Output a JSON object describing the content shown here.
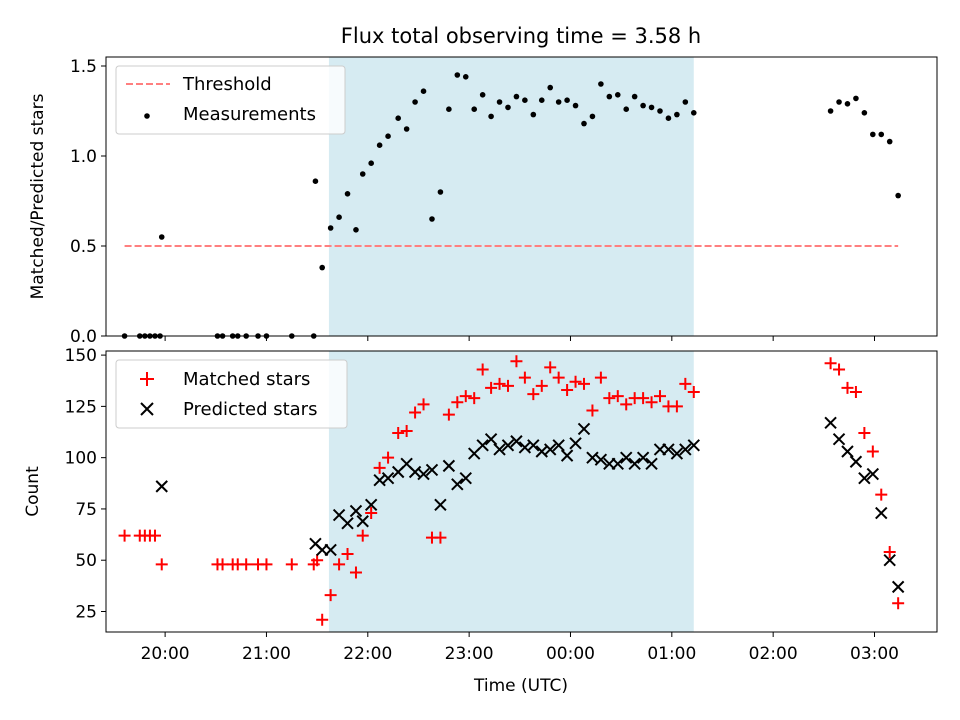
{
  "figure": {
    "title": "Flux total observing time = 3.58 h",
    "xlabel": "Time (UTC)"
  },
  "chart_data": [
    {
      "type": "scatter",
      "panel": "top",
      "ylabel": "Matched/Predicted stars",
      "xlim": [
        "19:25",
        "03:37"
      ],
      "ylim": [
        0,
        1.55
      ],
      "yticks": [
        0.0,
        0.5,
        1.0,
        1.5
      ],
      "ytick_labels": [
        "0.0",
        "0.5",
        "1.0",
        "1.5"
      ],
      "shaded_span": [
        "21:37",
        "01:13"
      ],
      "shaded_color": "#add8e6",
      "legend_position": "upper-left",
      "threshold": {
        "name": "Threshold",
        "value": 0.5,
        "x_range": [
          "19:36",
          "03:14"
        ],
        "color": "#ff7f7f",
        "style": "dashed"
      },
      "series": [
        {
          "name": "Measurements",
          "marker": "dot",
          "color": "#000000",
          "points": [
            [
              "19:36",
              0
            ],
            [
              "19:45",
              0
            ],
            [
              "19:48",
              0
            ],
            [
              "19:51",
              0
            ],
            [
              "19:54",
              0
            ],
            [
              "19:57",
              0
            ],
            [
              "19:58",
              0.55
            ],
            [
              "20:31",
              0
            ],
            [
              "20:34",
              0
            ],
            [
              "20:40",
              0
            ],
            [
              "20:43",
              0
            ],
            [
              "20:48",
              0
            ],
            [
              "20:55",
              0
            ],
            [
              "21:00",
              0
            ],
            [
              "21:15",
              0
            ],
            [
              "21:28",
              0
            ],
            [
              "21:29",
              0.86
            ],
            [
              "21:33",
              0.38
            ],
            [
              "21:38",
              0.6
            ],
            [
              "21:43",
              0.66
            ],
            [
              "21:48",
              0.79
            ],
            [
              "21:53",
              0.59
            ],
            [
              "21:57",
              0.9
            ],
            [
              "22:02",
              0.96
            ],
            [
              "22:07",
              1.06
            ],
            [
              "22:12",
              1.11
            ],
            [
              "22:18",
              1.21
            ],
            [
              "22:23",
              1.15
            ],
            [
              "22:28",
              1.3
            ],
            [
              "22:33",
              1.36
            ],
            [
              "22:38",
              0.65
            ],
            [
              "22:43",
              0.8
            ],
            [
              "22:48",
              1.26
            ],
            [
              "22:53",
              1.45
            ],
            [
              "22:58",
              1.44
            ],
            [
              "23:03",
              1.26
            ],
            [
              "23:08",
              1.34
            ],
            [
              "23:13",
              1.22
            ],
            [
              "23:18",
              1.3
            ],
            [
              "23:23",
              1.27
            ],
            [
              "23:28",
              1.33
            ],
            [
              "23:33",
              1.31
            ],
            [
              "23:38",
              1.23
            ],
            [
              "23:43",
              1.31
            ],
            [
              "23:48",
              1.38
            ],
            [
              "23:53",
              1.3
            ],
            [
              "23:58",
              1.31
            ],
            [
              "00:03",
              1.28
            ],
            [
              "00:08",
              1.18
            ],
            [
              "00:13",
              1.22
            ],
            [
              "00:18",
              1.4
            ],
            [
              "00:23",
              1.33
            ],
            [
              "00:28",
              1.34
            ],
            [
              "00:33",
              1.26
            ],
            [
              "00:38",
              1.33
            ],
            [
              "00:43",
              1.28
            ],
            [
              "00:48",
              1.27
            ],
            [
              "00:53",
              1.25
            ],
            [
              "00:58",
              1.21
            ],
            [
              "01:03",
              1.23
            ],
            [
              "01:08",
              1.3
            ],
            [
              "01:13",
              1.24
            ],
            [
              "02:34",
              1.25
            ],
            [
              "02:39",
              1.3
            ],
            [
              "02:44",
              1.29
            ],
            [
              "02:49",
              1.32
            ],
            [
              "02:54",
              1.24
            ],
            [
              "02:59",
              1.12
            ],
            [
              "03:04",
              1.12
            ],
            [
              "03:09",
              1.08
            ],
            [
              "03:14",
              0.78
            ]
          ]
        }
      ]
    },
    {
      "type": "scatter",
      "panel": "bottom",
      "xlabel": "Time (UTC)",
      "ylabel": "Count",
      "xlim": [
        "19:25",
        "03:37"
      ],
      "ylim": [
        15,
        152
      ],
      "yticks": [
        25,
        50,
        75,
        100,
        125,
        150
      ],
      "ytick_labels": [
        "25",
        "50",
        "75",
        "100",
        "125",
        "150"
      ],
      "xticks": [
        "20:00",
        "21:00",
        "22:00",
        "23:00",
        "00:00",
        "01:00",
        "02:00",
        "03:00"
      ],
      "shaded_span": [
        "21:37",
        "01:13"
      ],
      "shaded_color": "#add8e6",
      "legend_position": "upper-left",
      "series": [
        {
          "name": "Matched stars",
          "marker": "plus",
          "color": "#ff0000",
          "points": [
            [
              "19:36",
              62
            ],
            [
              "19:45",
              62
            ],
            [
              "19:48",
              62
            ],
            [
              "19:51",
              62
            ],
            [
              "19:54",
              62
            ],
            [
              "19:58",
              48
            ],
            [
              "20:31",
              48
            ],
            [
              "20:34",
              48
            ],
            [
              "20:40",
              48
            ],
            [
              "20:43",
              48
            ],
            [
              "20:48",
              48
            ],
            [
              "20:55",
              48
            ],
            [
              "21:00",
              48
            ],
            [
              "21:15",
              48
            ],
            [
              "21:28",
              48
            ],
            [
              "21:30",
              50
            ],
            [
              "21:33",
              21
            ],
            [
              "21:38",
              33
            ],
            [
              "21:43",
              48
            ],
            [
              "21:48",
              53
            ],
            [
              "21:53",
              44
            ],
            [
              "21:57",
              62
            ],
            [
              "22:02",
              73
            ],
            [
              "22:07",
              95
            ],
            [
              "22:12",
              100
            ],
            [
              "22:18",
              112
            ],
            [
              "22:23",
              113
            ],
            [
              "22:28",
              122
            ],
            [
              "22:33",
              126
            ],
            [
              "22:38",
              61
            ],
            [
              "22:43",
              61
            ],
            [
              "22:48",
              121
            ],
            [
              "22:53",
              127
            ],
            [
              "22:58",
              130
            ],
            [
              "23:03",
              129
            ],
            [
              "23:08",
              143
            ],
            [
              "23:13",
              134
            ],
            [
              "23:18",
              136
            ],
            [
              "23:23",
              135
            ],
            [
              "23:28",
              147
            ],
            [
              "23:33",
              139
            ],
            [
              "23:38",
              131
            ],
            [
              "23:43",
              135
            ],
            [
              "23:48",
              144
            ],
            [
              "23:53",
              139
            ],
            [
              "23:58",
              133
            ],
            [
              "00:03",
              137
            ],
            [
              "00:08",
              136
            ],
            [
              "00:13",
              123
            ],
            [
              "00:18",
              139
            ],
            [
              "00:23",
              129
            ],
            [
              "00:28",
              130
            ],
            [
              "00:33",
              126
            ],
            [
              "00:38",
              129
            ],
            [
              "00:43",
              129
            ],
            [
              "00:48",
              127
            ],
            [
              "00:53",
              130
            ],
            [
              "00:58",
              125
            ],
            [
              "01:03",
              125
            ],
            [
              "01:08",
              136
            ],
            [
              "01:13",
              132
            ],
            [
              "02:34",
              146
            ],
            [
              "02:39",
              143
            ],
            [
              "02:44",
              134
            ],
            [
              "02:49",
              132
            ],
            [
              "02:54",
              112
            ],
            [
              "02:59",
              103
            ],
            [
              "03:04",
              82
            ],
            [
              "03:09",
              54
            ],
            [
              "03:14",
              29
            ]
          ]
        },
        {
          "name": "Predicted stars",
          "marker": "x",
          "color": "#000000",
          "points": [
            [
              "19:58",
              86
            ],
            [
              "21:29",
              58
            ],
            [
              "21:33",
              55
            ],
            [
              "21:38",
              55
            ],
            [
              "21:43",
              72
            ],
            [
              "21:48",
              68
            ],
            [
              "21:53",
              74
            ],
            [
              "21:57",
              69
            ],
            [
              "22:02",
              77
            ],
            [
              "22:07",
              89
            ],
            [
              "22:12",
              90
            ],
            [
              "22:18",
              93
            ],
            [
              "22:23",
              97
            ],
            [
              "22:28",
              93
            ],
            [
              "22:33",
              92
            ],
            [
              "22:38",
              94
            ],
            [
              "22:43",
              77
            ],
            [
              "22:48",
              96
            ],
            [
              "22:53",
              87
            ],
            [
              "22:58",
              90
            ],
            [
              "23:03",
              102
            ],
            [
              "23:08",
              106
            ],
            [
              "23:13",
              109
            ],
            [
              "23:18",
              104
            ],
            [
              "23:23",
              106
            ],
            [
              "23:28",
              108
            ],
            [
              "23:33",
              105
            ],
            [
              "23:38",
              106
            ],
            [
              "23:43",
              103
            ],
            [
              "23:48",
              104
            ],
            [
              "23:53",
              106
            ],
            [
              "23:58",
              101
            ],
            [
              "00:03",
              107
            ],
            [
              "00:08",
              114
            ],
            [
              "00:13",
              100
            ],
            [
              "00:18",
              99
            ],
            [
              "00:23",
              97
            ],
            [
              "00:28",
              97
            ],
            [
              "00:33",
              100
            ],
            [
              "00:38",
              97
            ],
            [
              "00:43",
              100
            ],
            [
              "00:48",
              97
            ],
            [
              "00:53",
              104
            ],
            [
              "00:58",
              104
            ],
            [
              "01:03",
              102
            ],
            [
              "01:08",
              104
            ],
            [
              "01:13",
              106
            ],
            [
              "02:34",
              117
            ],
            [
              "02:39",
              109
            ],
            [
              "02:44",
              103
            ],
            [
              "02:49",
              98
            ],
            [
              "02:54",
              90
            ],
            [
              "02:59",
              92
            ],
            [
              "03:04",
              73
            ],
            [
              "03:09",
              50
            ],
            [
              "03:14",
              37
            ]
          ]
        }
      ]
    }
  ]
}
